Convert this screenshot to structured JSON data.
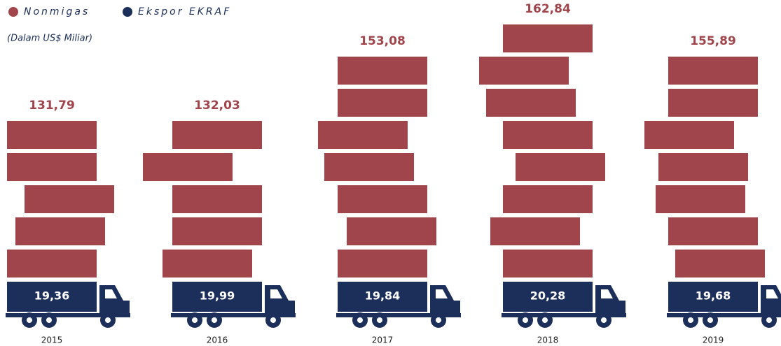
{
  "chart_data": {
    "type": "pictogram",
    "subtitle": "(Dalam US$ Miliar)",
    "categories": [
      "2015",
      "2016",
      "2017",
      "2018",
      "2019"
    ],
    "series": [
      {
        "name": "Nonmigas",
        "color": "#a0454b",
        "values": [
          131.79,
          132.03,
          153.08,
          162.84,
          155.89
        ],
        "value_labels": [
          "131,79",
          "132,03",
          "153,08",
          "162,84",
          "155,89"
        ]
      },
      {
        "name": "Ekspor EKRAF",
        "color": "#1c2f5a",
        "values": [
          19.36,
          19.99,
          19.84,
          20.28,
          19.68
        ],
        "value_labels": [
          "19,36",
          "19,99",
          "19,84",
          "20,28",
          "19,68"
        ]
      }
    ]
  }
}
